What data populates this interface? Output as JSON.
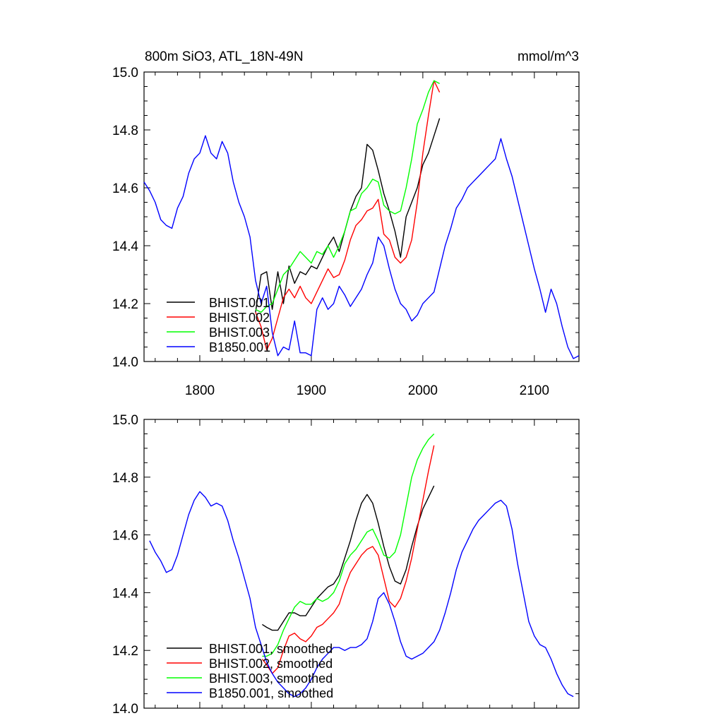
{
  "header": {
    "title": "800m SiO3, ATL_18N-49N",
    "units": "mmol/m^3"
  },
  "chart_data": [
    {
      "type": "line",
      "xlim": [
        1750,
        2140
      ],
      "ylim": [
        14.0,
        15.0
      ],
      "x_ticks": [
        1800,
        1900,
        2000,
        2100
      ],
      "x_tick_labels": [
        "1800",
        "1900",
        "2000",
        "2100"
      ],
      "y_ticks": [
        14.0,
        14.2,
        14.4,
        14.6,
        14.8,
        15.0
      ],
      "y_tick_labels": [
        "14.0",
        "14.2",
        "14.4",
        "14.6",
        "14.8",
        "15.0"
      ],
      "grid": false,
      "legend_position": "bottom-left",
      "series": [
        {
          "name": "BHIST.001",
          "color": "#000000",
          "x": [
            1850,
            1855,
            1860,
            1865,
            1870,
            1875,
            1880,
            1885,
            1890,
            1895,
            1900,
            1905,
            1910,
            1915,
            1920,
            1925,
            1930,
            1935,
            1940,
            1945,
            1950,
            1955,
            1960,
            1965,
            1970,
            1975,
            1980,
            1985,
            1990,
            1995,
            2000,
            2005,
            2010,
            2015
          ],
          "y": [
            14.17,
            14.3,
            14.31,
            14.18,
            14.31,
            14.2,
            14.33,
            14.27,
            14.31,
            14.3,
            14.33,
            14.32,
            14.36,
            14.4,
            14.43,
            14.38,
            14.45,
            14.52,
            14.57,
            14.6,
            14.75,
            14.73,
            14.66,
            14.58,
            14.52,
            14.45,
            14.36,
            14.5,
            14.55,
            14.6,
            14.68,
            14.72,
            14.78,
            14.84
          ]
        },
        {
          "name": "BHIST.002",
          "color": "#ff0000",
          "x": [
            1850,
            1855,
            1860,
            1865,
            1870,
            1875,
            1880,
            1885,
            1890,
            1895,
            1900,
            1905,
            1910,
            1915,
            1920,
            1925,
            1930,
            1935,
            1940,
            1945,
            1950,
            1955,
            1960,
            1965,
            1970,
            1975,
            1980,
            1985,
            1990,
            1995,
            2000,
            2005,
            2010,
            2015
          ],
          "y": [
            14.17,
            14.12,
            14.04,
            14.08,
            14.15,
            14.22,
            14.25,
            14.22,
            14.26,
            14.22,
            14.2,
            14.24,
            14.28,
            14.32,
            14.29,
            14.3,
            14.35,
            14.42,
            14.47,
            14.49,
            14.52,
            14.53,
            14.56,
            14.44,
            14.42,
            14.36,
            14.34,
            14.36,
            14.42,
            14.55,
            14.72,
            14.85,
            14.97,
            14.93
          ]
        },
        {
          "name": "BHIST.003",
          "color": "#00ff00",
          "x": [
            1850,
            1855,
            1860,
            1865,
            1870,
            1875,
            1880,
            1885,
            1890,
            1895,
            1900,
            1905,
            1910,
            1915,
            1920,
            1925,
            1930,
            1935,
            1940,
            1945,
            1950,
            1955,
            1960,
            1965,
            1970,
            1975,
            1980,
            1985,
            1990,
            1995,
            2000,
            2005,
            2010,
            2015
          ],
          "y": [
            14.18,
            14.17,
            14.19,
            14.2,
            14.25,
            14.3,
            14.32,
            14.35,
            14.38,
            14.36,
            14.34,
            14.38,
            14.37,
            14.4,
            14.36,
            14.4,
            14.45,
            14.52,
            14.53,
            14.58,
            14.6,
            14.63,
            14.62,
            14.54,
            14.52,
            14.51,
            14.52,
            14.6,
            14.7,
            14.82,
            14.87,
            14.93,
            14.97,
            14.96
          ]
        },
        {
          "name": "B1850.001",
          "color": "#0000ff",
          "x": [
            1750,
            1755,
            1760,
            1765,
            1770,
            1775,
            1780,
            1785,
            1790,
            1795,
            1800,
            1805,
            1810,
            1815,
            1820,
            1825,
            1830,
            1835,
            1840,
            1845,
            1850,
            1855,
            1860,
            1865,
            1870,
            1875,
            1880,
            1885,
            1890,
            1895,
            1900,
            1905,
            1910,
            1915,
            1920,
            1925,
            1930,
            1935,
            1940,
            1945,
            1950,
            1955,
            1960,
            1965,
            1970,
            1975,
            1980,
            1985,
            1990,
            1995,
            2000,
            2005,
            2010,
            2015,
            2020,
            2025,
            2030,
            2035,
            2040,
            2045,
            2050,
            2055,
            2060,
            2065,
            2070,
            2075,
            2080,
            2085,
            2090,
            2095,
            2100,
            2105,
            2110,
            2115,
            2120,
            2125,
            2130,
            2135,
            2140
          ],
          "y": [
            14.62,
            14.59,
            14.55,
            14.49,
            14.47,
            14.46,
            14.53,
            14.57,
            14.65,
            14.7,
            14.72,
            14.78,
            14.72,
            14.7,
            14.76,
            14.72,
            14.62,
            14.55,
            14.5,
            14.43,
            14.28,
            14.2,
            14.26,
            14.1,
            14.02,
            14.05,
            14.04,
            14.14,
            14.03,
            14.03,
            14.02,
            14.18,
            14.22,
            14.18,
            14.2,
            14.26,
            14.23,
            14.19,
            14.22,
            14.25,
            14.3,
            14.34,
            14.43,
            14.4,
            14.32,
            14.25,
            14.2,
            14.18,
            14.14,
            14.16,
            14.2,
            14.22,
            14.24,
            14.32,
            14.4,
            14.46,
            14.53,
            14.56,
            14.6,
            14.62,
            14.64,
            14.66,
            14.68,
            14.7,
            14.77,
            14.7,
            14.64,
            14.56,
            14.48,
            14.4,
            14.32,
            14.25,
            14.17,
            14.25,
            14.2,
            14.12,
            14.05,
            14.01,
            14.02
          ]
        }
      ]
    },
    {
      "type": "line",
      "xlim": [
        1750,
        2140
      ],
      "ylim": [
        14.0,
        15.0
      ],
      "x_ticks": [
        1800,
        1900,
        2000,
        2100
      ],
      "y_ticks": [
        14.0,
        14.2,
        14.4,
        14.6,
        14.8,
        15.0
      ],
      "y_tick_labels": [
        "14.0",
        "14.2",
        "14.4",
        "14.6",
        "14.8",
        "15.0"
      ],
      "grid": false,
      "legend_position": "bottom-left",
      "series": [
        {
          "name": "BHIST.001, smoothed",
          "color": "#000000",
          "x": [
            1856,
            1860,
            1865,
            1870,
            1875,
            1880,
            1885,
            1890,
            1895,
            1900,
            1905,
            1910,
            1915,
            1920,
            1925,
            1930,
            1935,
            1940,
            1945,
            1950,
            1955,
            1960,
            1965,
            1970,
            1975,
            1980,
            1985,
            1990,
            1995,
            2000,
            2005,
            2010
          ],
          "y": [
            14.29,
            14.28,
            14.27,
            14.27,
            14.3,
            14.33,
            14.33,
            14.32,
            14.32,
            14.35,
            14.38,
            14.4,
            14.42,
            14.43,
            14.46,
            14.52,
            14.58,
            14.65,
            14.71,
            14.74,
            14.71,
            14.64,
            14.56,
            14.49,
            14.44,
            14.43,
            14.48,
            14.56,
            14.63,
            14.69,
            14.73,
            14.77
          ]
        },
        {
          "name": "BHIST.002, smoothed",
          "color": "#ff0000",
          "x": [
            1856,
            1860,
            1865,
            1870,
            1875,
            1880,
            1885,
            1890,
            1895,
            1900,
            1905,
            1910,
            1915,
            1920,
            1925,
            1930,
            1935,
            1940,
            1945,
            1950,
            1955,
            1960,
            1965,
            1970,
            1975,
            1980,
            1985,
            1990,
            1995,
            2000,
            2005,
            2010
          ],
          "y": [
            14.17,
            14.15,
            14.12,
            14.14,
            14.2,
            14.25,
            14.26,
            14.24,
            14.23,
            14.25,
            14.28,
            14.29,
            14.31,
            14.33,
            14.36,
            14.42,
            14.47,
            14.5,
            14.53,
            14.55,
            14.56,
            14.53,
            14.45,
            14.37,
            14.35,
            14.38,
            14.44,
            14.52,
            14.62,
            14.72,
            14.82,
            14.91
          ]
        },
        {
          "name": "BHIST.003, smoothed",
          "color": "#00ff00",
          "x": [
            1856,
            1860,
            1865,
            1870,
            1875,
            1880,
            1885,
            1890,
            1895,
            1900,
            1905,
            1910,
            1915,
            1920,
            1925,
            1930,
            1935,
            1940,
            1945,
            1950,
            1955,
            1960,
            1965,
            1970,
            1975,
            1980,
            1985,
            1990,
            1995,
            2000,
            2005,
            2010
          ],
          "y": [
            14.18,
            14.18,
            14.19,
            14.22,
            14.27,
            14.31,
            14.35,
            14.37,
            14.36,
            14.36,
            14.38,
            14.37,
            14.38,
            14.4,
            14.44,
            14.5,
            14.53,
            14.55,
            14.58,
            14.61,
            14.62,
            14.58,
            14.53,
            14.52,
            14.54,
            14.6,
            14.7,
            14.8,
            14.86,
            14.9,
            14.93,
            14.95
          ]
        },
        {
          "name": "B1850.001, smoothed",
          "color": "#0000ff",
          "x": [
            1755,
            1760,
            1765,
            1770,
            1775,
            1780,
            1785,
            1790,
            1795,
            1800,
            1805,
            1810,
            1815,
            1820,
            1825,
            1830,
            1835,
            1840,
            1845,
            1850,
            1855,
            1860,
            1865,
            1870,
            1875,
            1880,
            1885,
            1890,
            1895,
            1900,
            1905,
            1910,
            1915,
            1920,
            1925,
            1930,
            1935,
            1940,
            1945,
            1950,
            1955,
            1960,
            1965,
            1970,
            1975,
            1980,
            1985,
            1990,
            1995,
            2000,
            2005,
            2010,
            2015,
            2020,
            2025,
            2030,
            2035,
            2040,
            2045,
            2050,
            2055,
            2060,
            2065,
            2070,
            2075,
            2080,
            2085,
            2090,
            2095,
            2100,
            2105,
            2110,
            2115,
            2120,
            2125,
            2130,
            2135
          ],
          "y": [
            14.58,
            14.54,
            14.51,
            14.47,
            14.48,
            14.53,
            14.6,
            14.67,
            14.72,
            14.75,
            14.73,
            14.7,
            14.71,
            14.7,
            14.65,
            14.58,
            14.52,
            14.45,
            14.38,
            14.28,
            14.22,
            14.16,
            14.12,
            14.09,
            14.07,
            14.05,
            14.04,
            14.05,
            14.07,
            14.1,
            14.14,
            14.17,
            14.19,
            14.21,
            14.21,
            14.2,
            14.21,
            14.21,
            14.22,
            14.24,
            14.3,
            14.38,
            14.4,
            14.36,
            14.3,
            14.23,
            14.18,
            14.17,
            14.18,
            14.19,
            14.21,
            14.23,
            14.27,
            14.33,
            14.4,
            14.48,
            14.54,
            14.58,
            14.62,
            14.65,
            14.67,
            14.69,
            14.71,
            14.72,
            14.7,
            14.62,
            14.5,
            14.4,
            14.3,
            14.25,
            14.22,
            14.21,
            14.17,
            14.12,
            14.08,
            14.05,
            14.04
          ]
        }
      ]
    }
  ]
}
